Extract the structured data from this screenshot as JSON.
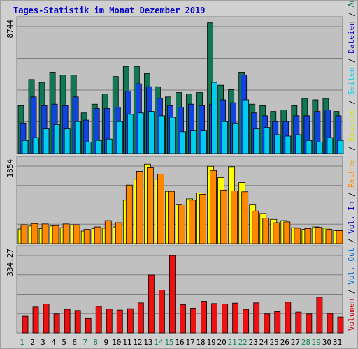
{
  "title": "Tages-Statistik im Monat Dezember 2019",
  "chart_data": {
    "type": "bar",
    "categories": [
      "1",
      "2",
      "3",
      "4",
      "5",
      "6",
      "7",
      "8",
      "9",
      "10",
      "11",
      "12",
      "13",
      "14",
      "15",
      "16",
      "17",
      "18",
      "19",
      "20",
      "21",
      "22",
      "23",
      "24",
      "25",
      "26",
      "27",
      "28",
      "29",
      "30",
      "31"
    ],
    "weekend_days": [
      "1",
      "7",
      "8",
      "14",
      "15",
      "21",
      "22",
      "28",
      "29"
    ],
    "panels": [
      {
        "max_label": "8744",
        "ymax": 8744,
        "series": [
          {
            "name": "Anfragen",
            "color": "#117755",
            "values": [
              3300,
              5100,
              4900,
              5600,
              5400,
              5400,
              2800,
              3400,
              4100,
              5300,
              6000,
              6000,
              5500,
              4600,
              3900,
              4200,
              4100,
              4200,
              9000,
              4700,
              4400,
              5600,
              3400,
              3300,
              2900,
              3000,
              3300,
              3800,
              3700,
              3800,
              2900
            ]
          },
          {
            "name": "Dateien",
            "color": "#1144dd",
            "values": [
              2100,
              3900,
              3300,
              3400,
              3300,
              3900,
              2300,
              3100,
              3100,
              3200,
              4300,
              4800,
              4600,
              3800,
              3300,
              3200,
              3400,
              3300,
              3400,
              3700,
              3500,
              5400,
              2800,
              2600,
              2200,
              2200,
              2600,
              2600,
              2900,
              3000,
              2600
            ]
          },
          {
            "name": "Seiten",
            "color": "#00ccee",
            "values": [
              900,
              1100,
              1700,
              2000,
              1700,
              2200,
              800,
              900,
              1000,
              2200,
              2700,
              2800,
              2900,
              2600,
              2500,
              1500,
              1600,
              1600,
              4900,
              2200,
              2100,
              3700,
              1700,
              1800,
              1300,
              1200,
              1300,
              900,
              800,
              1100,
              900
            ]
          }
        ]
      },
      {
        "max_label": "1854",
        "ymax": 1854,
        "series": [
          {
            "name": "Besuche",
            "color": "#ffff00",
            "values": [
              350,
              420,
              360,
              420,
              380,
              450,
              300,
              360,
              370,
              400,
              1040,
              1540,
              1900,
              1540,
              1250,
              940,
              1070,
              1210,
              1850,
              1580,
              1840,
              1460,
              940,
              720,
              580,
              550,
              380,
              340,
              400,
              370,
              310
            ]
          },
          {
            "name": "Rechner",
            "color": "#ff8800",
            "values": [
              450,
              480,
              470,
              430,
              470,
              450,
              340,
              400,
              550,
              500,
              1400,
              1730,
              1830,
              1660,
              1250,
              930,
              1040,
              1180,
              1750,
              1280,
              1260,
              1240,
              780,
              610,
              500,
              520,
              370,
              360,
              390,
              340,
              310
            ]
          }
        ]
      },
      {
        "max_label": "334.27",
        "ymax": 334.27,
        "series": [
          {
            "name": "Vol. In",
            "color": "#1144dd",
            "values": [
              0,
              0,
              0,
              0,
              0,
              0,
              0,
              0,
              0,
              0,
              0,
              0,
              0,
              0,
              0,
              0,
              0,
              0,
              0,
              0,
              0,
              0,
              0,
              0,
              0,
              0,
              0,
              0,
              0,
              0,
              0
            ]
          },
          {
            "name": "Vol. Out",
            "color": "#0066cc",
            "values": [
              0,
              0,
              0,
              0,
              0,
              0,
              0,
              0,
              0,
              0,
              0,
              0,
              0,
              0,
              0,
              0,
              0,
              0,
              0,
              0,
              0,
              0,
              0,
              0,
              0,
              0,
              0,
              0,
              0,
              0,
              0
            ]
          },
          {
            "name": "Volumen",
            "color": "#ee1111",
            "values": [
              72,
              112,
              125,
              82,
              102,
              97,
              62,
              115,
              103,
              99,
              105,
              130,
              250,
              185,
              334,
              122,
              107,
              137,
              127,
              125,
              129,
              102,
              130,
              82,
              92,
              133,
              90,
              82,
              154,
              84,
              69
            ]
          }
        ]
      }
    ]
  },
  "right_legend": [
    {
      "text": "Volumen",
      "color": "#cc0000"
    },
    {
      "text": " / ",
      "color": "#000000"
    },
    {
      "text": "Vol. Out",
      "color": "#0066cc"
    },
    {
      "text": " / ",
      "color": "#000000"
    },
    {
      "text": "Vol. In",
      "color": "#0000cc"
    },
    {
      "text": " / ",
      "color": "#000000"
    },
    {
      "text": "Rechner",
      "color": "#ff8800"
    },
    {
      "text": " / ",
      "color": "#000000"
    },
    {
      "text": "Besuche",
      "color": "#dddd00"
    },
    {
      "text": " / ",
      "color": "#000000"
    },
    {
      "text": "Seiten",
      "color": "#00ccee"
    },
    {
      "text": " / ",
      "color": "#000000"
    },
    {
      "text": "Dateien",
      "color": "#0000cc"
    },
    {
      "text": " / ",
      "color": "#000000"
    },
    {
      "text": "Anfragen",
      "color": "#117755"
    }
  ]
}
